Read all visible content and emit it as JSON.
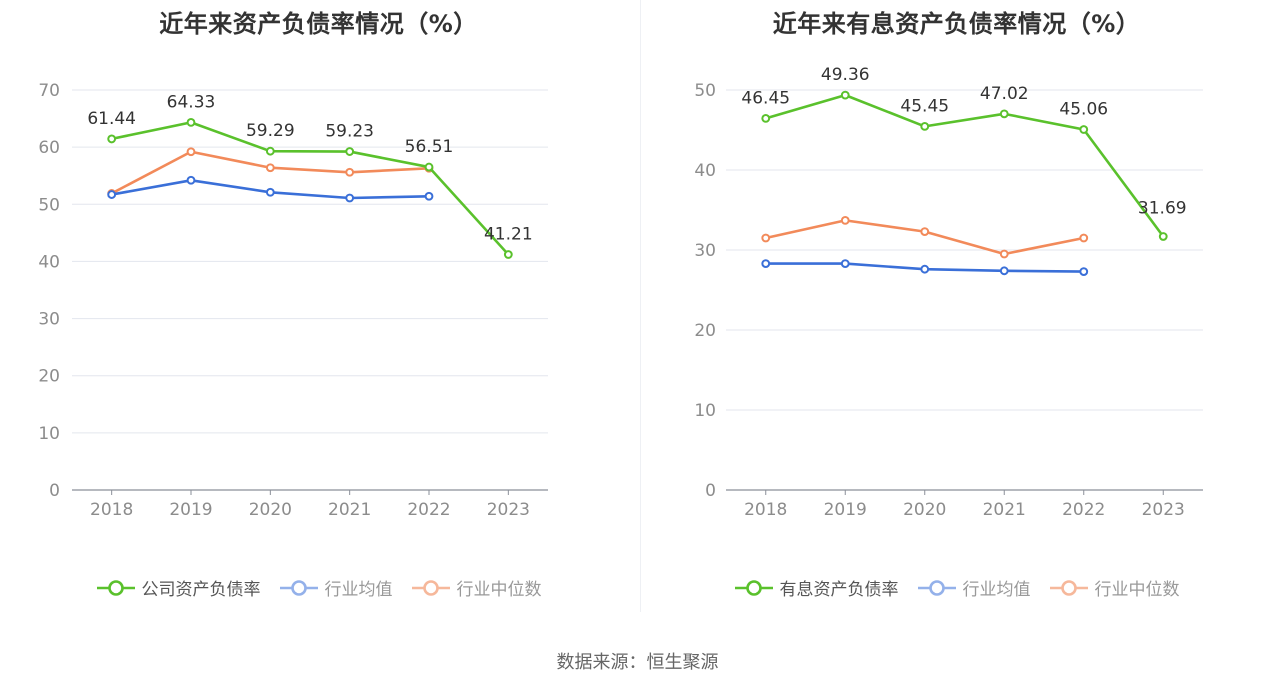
{
  "chart_data": [
    {
      "type": "line",
      "title": "近年来资产负债率情况（%）",
      "categories": [
        "2018",
        "2019",
        "2020",
        "2021",
        "2022",
        "2023"
      ],
      "ylim": [
        0,
        70
      ],
      "yticks": [
        0,
        10,
        20,
        30,
        40,
        50,
        60,
        70
      ],
      "grid": true,
      "legend_position": "bottom",
      "series": [
        {
          "name": "公司资产负债率",
          "color": "#5ac12c",
          "values": [
            61.44,
            64.33,
            59.29,
            59.23,
            56.51,
            41.21
          ],
          "labels": [
            "61.44",
            "64.33",
            "59.29",
            "59.23",
            "56.51",
            "41.21"
          ]
        },
        {
          "name": "行业均值",
          "color": "#3a6fd8",
          "legend_color": "#94b1ea",
          "values": [
            51.7,
            54.2,
            52.1,
            51.1,
            51.4,
            null
          ]
        },
        {
          "name": "行业中位数",
          "color": "#f28a5a",
          "legend_color": "#f6b89b",
          "values": [
            51.9,
            59.2,
            56.4,
            55.6,
            56.3,
            null
          ]
        }
      ]
    },
    {
      "type": "line",
      "title": "近年来有息资产负债率情况（%）",
      "categories": [
        "2018",
        "2019",
        "2020",
        "2021",
        "2022",
        "2023"
      ],
      "ylim": [
        0,
        50
      ],
      "yticks": [
        0,
        10,
        20,
        30,
        40,
        50
      ],
      "grid": true,
      "legend_position": "bottom",
      "series": [
        {
          "name": "有息资产负债率",
          "color": "#5ac12c",
          "values": [
            46.45,
            49.36,
            45.45,
            47.02,
            45.06,
            31.69
          ],
          "labels": [
            "46.45",
            "49.36",
            "45.45",
            "47.02",
            "45.06",
            "31.69"
          ]
        },
        {
          "name": "行业均值",
          "color": "#3a6fd8",
          "legend_color": "#94b1ea",
          "values": [
            28.3,
            28.3,
            27.6,
            27.4,
            27.3,
            null
          ]
        },
        {
          "name": "行业中位数",
          "color": "#f28a5a",
          "legend_color": "#f6b89b",
          "values": [
            31.5,
            33.7,
            32.3,
            29.5,
            31.5,
            null
          ]
        }
      ]
    }
  ],
  "source": "数据来源：恒生聚源"
}
